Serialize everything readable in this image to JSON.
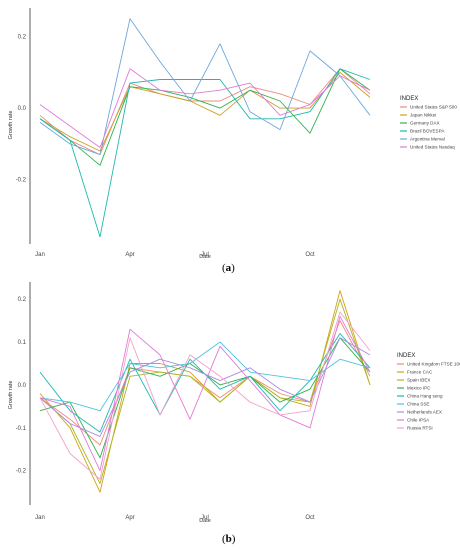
{
  "charts": [
    {
      "caption": "(a)",
      "caption_letter": "a"
    },
    {
      "caption": "(b)",
      "caption_letter": "b"
    }
  ],
  "chart_data": [
    {
      "type": "line",
      "xlabel": "Date",
      "ylabel": "Growth rate",
      "x_ticks": [
        "Jan",
        "Apr",
        "Jul",
        "Oct"
      ],
      "y_ticks": [
        -0.2,
        0.0,
        0.2
      ],
      "y_tick_labels": [
        "-0.2",
        "0.0",
        "0.2"
      ],
      "ylim": [
        -0.38,
        0.28
      ],
      "legend_title": "INDEX",
      "legend_position": "right",
      "x": [
        1,
        2,
        3,
        4,
        5,
        6,
        7,
        8,
        9,
        10,
        11,
        12
      ],
      "series": [
        {
          "name": "United States S&P 500",
          "color": "#f08a7e",
          "values": [
            -0.02,
            -0.09,
            -0.13,
            0.07,
            0.04,
            0.02,
            0.02,
            0.06,
            0.04,
            0.01,
            0.11,
            0.04
          ]
        },
        {
          "name": "Japan Nikkei",
          "color": "#c9a227",
          "values": [
            -0.03,
            -0.08,
            -0.12,
            0.06,
            0.04,
            0.02,
            -0.02,
            0.05,
            0.0,
            0.0,
            0.1,
            0.03
          ]
        },
        {
          "name": "Germany DAX",
          "color": "#2fb34a",
          "values": [
            -0.03,
            -0.09,
            -0.16,
            0.06,
            0.05,
            0.03,
            0.0,
            0.05,
            0.02,
            -0.07,
            0.11,
            0.05
          ]
        },
        {
          "name": "Brazil BOVESPA",
          "color": "#1fb8b0",
          "values": [
            -0.03,
            -0.09,
            -0.36,
            0.07,
            0.08,
            0.08,
            0.08,
            -0.03,
            -0.03,
            -0.01,
            0.11,
            0.08
          ]
        },
        {
          "name": "Argentina Merval",
          "color": "#6fa8dc",
          "values": [
            -0.04,
            -0.1,
            -0.13,
            0.25,
            0.13,
            0.02,
            0.18,
            -0.01,
            -0.06,
            0.16,
            0.09,
            -0.02
          ]
        },
        {
          "name": "United States Nasdaq",
          "color": "#e07bd8",
          "values": [
            0.01,
            -0.05,
            -0.11,
            0.11,
            0.05,
            0.04,
            0.05,
            0.07,
            -0.02,
            0.01,
            0.09,
            0.05
          ]
        }
      ]
    },
    {
      "type": "line",
      "xlabel": "Date",
      "ylabel": "Growth rate",
      "x_ticks": [
        "Jan",
        "Apr",
        "Jul",
        "Oct"
      ],
      "y_ticks": [
        -0.2,
        -0.1,
        0.0,
        0.1,
        0.2
      ],
      "y_tick_labels": [
        "-0.2",
        "-0.1",
        "0.0",
        "0.1",
        "0.2"
      ],
      "ylim": [
        -0.28,
        0.24
      ],
      "legend_title": "INDEX",
      "legend_position": "right",
      "x": [
        1,
        2,
        3,
        4,
        5,
        6,
        7,
        8,
        9,
        10,
        11,
        12
      ],
      "series": [
        {
          "name": "United Kingdom FTSE 100",
          "color": "#f08a7e",
          "values": [
            -0.03,
            -0.08,
            -0.14,
            0.04,
            0.03,
            0.02,
            -0.03,
            0.02,
            -0.02,
            -0.04,
            0.15,
            0.02
          ]
        },
        {
          "name": "France CAC",
          "color": "#d4a017",
          "values": [
            -0.02,
            -0.1,
            -0.25,
            0.05,
            0.05,
            0.03,
            -0.04,
            0.02,
            -0.03,
            -0.05,
            0.22,
            0.0
          ]
        },
        {
          "name": "Spain IBEX",
          "color": "#a8b820",
          "values": [
            -0.03,
            -0.09,
            -0.23,
            0.02,
            0.03,
            0.02,
            -0.04,
            0.02,
            -0.03,
            -0.04,
            0.2,
            0.0
          ]
        },
        {
          "name": "Mexico IPC",
          "color": "#2fb34a",
          "values": [
            -0.06,
            -0.04,
            -0.17,
            0.04,
            0.02,
            0.05,
            0.0,
            0.02,
            -0.04,
            -0.01,
            0.11,
            0.03
          ]
        },
        {
          "name": "China Hang seng",
          "color": "#1fb8b0",
          "values": [
            0.03,
            -0.06,
            -0.11,
            0.06,
            -0.07,
            0.06,
            -0.01,
            0.02,
            -0.06,
            0.01,
            0.12,
            0.04
          ]
        },
        {
          "name": "China SSE",
          "color": "#4fc3e0",
          "values": [
            -0.03,
            -0.04,
            -0.06,
            0.05,
            0.04,
            0.05,
            0.1,
            0.03,
            0.02,
            0.01,
            0.06,
            0.04
          ]
        },
        {
          "name": "Netherlands AEX",
          "color": "#a98be8",
          "values": [
            -0.03,
            -0.09,
            -0.12,
            0.03,
            0.06,
            0.04,
            0.01,
            0.04,
            -0.01,
            -0.04,
            0.11,
            0.07
          ]
        },
        {
          "name": "Chile IPSA",
          "color": "#e07bd8",
          "values": [
            -0.03,
            -0.05,
            -0.2,
            0.13,
            0.07,
            -0.08,
            0.09,
            0.01,
            -0.07,
            -0.1,
            0.16,
            0.03
          ]
        },
        {
          "name": "Russia RTSI",
          "color": "#f4a0c8",
          "values": [
            -0.03,
            -0.16,
            -0.22,
            0.11,
            -0.07,
            0.07,
            0.02,
            -0.04,
            -0.07,
            -0.06,
            0.17,
            0.08
          ]
        }
      ]
    }
  ]
}
